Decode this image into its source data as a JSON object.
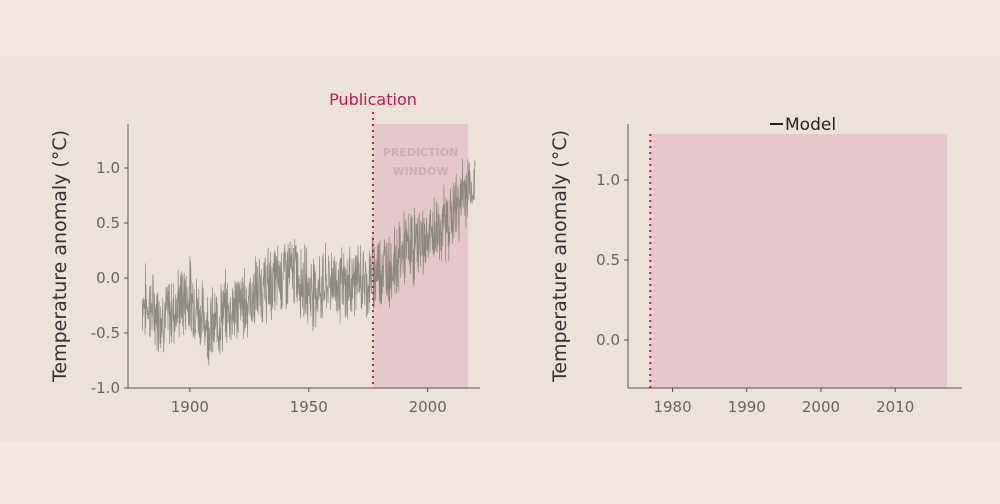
{
  "colors": {
    "page_bg": "#f2e8df",
    "panel_bg": "#ece2d8",
    "shade": "#e6c8cc",
    "publication": "#c2185b",
    "series": "#7b7b6e",
    "axis": "#555555",
    "text": "#333333",
    "tick_text": "#666666"
  },
  "chart_data": [
    {
      "type": "line",
      "title": "",
      "ylabel": "Temperature anomaly (°C)",
      "xlabel": "",
      "xlim": [
        1874,
        2022
      ],
      "ylim": [
        -1.0,
        1.4
      ],
      "xticks": [
        1900,
        1950,
        2000
      ],
      "yticks": [
        -1.0,
        -0.5,
        0.0,
        0.5,
        1.0
      ],
      "ytick_labels": [
        "-1.0",
        "-0.5",
        "0.0",
        "0.5",
        "1.0"
      ],
      "publication": {
        "x": 1977,
        "label": "Publication"
      },
      "prediction_window": {
        "x_start": 1977,
        "x_end": 2017,
        "label": [
          "PREDICTION",
          "WINDOW"
        ]
      },
      "series": [
        {
          "x": [
            1880,
            1885,
            1890,
            1895,
            1900,
            1905,
            1910,
            1915,
            1920,
            1925,
            1930,
            1935,
            1940,
            1945,
            1950,
            1955,
            1960,
            1965,
            1970,
            1975,
            1977,
            1980,
            1985,
            1990,
            1995,
            2000,
            2005,
            2010,
            2015,
            2017,
            2020
          ],
          "y": [
            -0.2,
            -0.3,
            -0.35,
            -0.25,
            -0.15,
            -0.35,
            -0.45,
            -0.3,
            -0.25,
            -0.2,
            -0.1,
            -0.05,
            0.05,
            0.05,
            -0.1,
            -0.1,
            0.0,
            -0.1,
            0.0,
            -0.05,
            0.05,
            0.1,
            0.1,
            0.25,
            0.3,
            0.35,
            0.45,
            0.55,
            0.75,
            0.85,
            0.8
          ]
        }
      ]
    },
    {
      "type": "line",
      "title": "",
      "ylabel": "Temperature anomaly (°C)",
      "xlabel": "",
      "xlim": [
        1974,
        2019
      ],
      "ylim": [
        -0.3,
        1.35
      ],
      "xticks": [
        1980,
        1990,
        2000,
        2010
      ],
      "yticks": [
        0.0,
        0.5,
        1.0
      ],
      "ytick_labels": [
        "0.0",
        "0.5",
        "1.0"
      ],
      "publication": {
        "x": 1977,
        "label": ""
      },
      "prediction_window": {
        "x_start": 1977,
        "x_end": 2017
      },
      "legend": {
        "position": "top-center",
        "entries": [
          "Model"
        ]
      },
      "series": []
    }
  ]
}
